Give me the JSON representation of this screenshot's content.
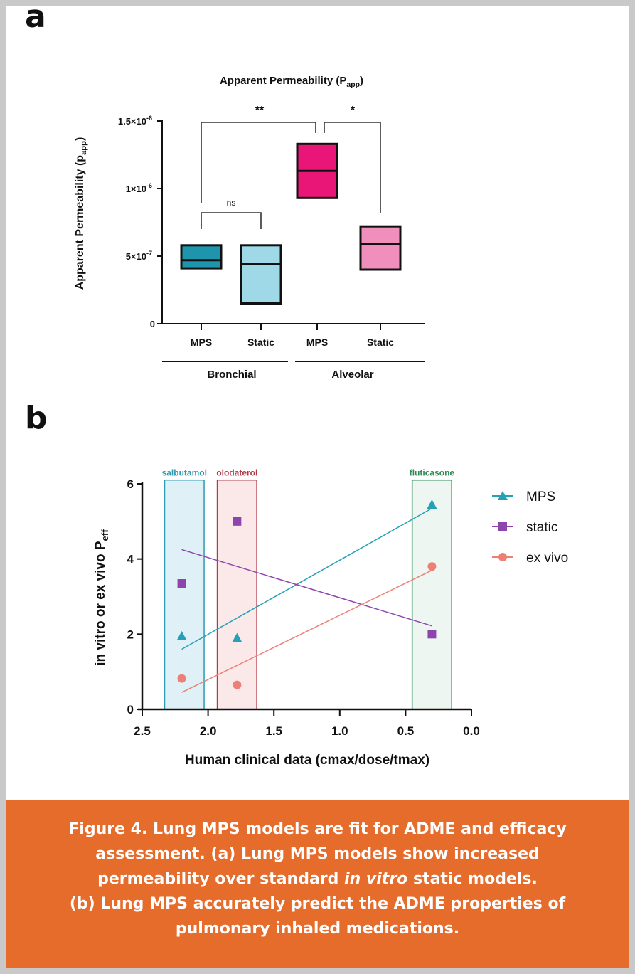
{
  "panels": {
    "a": "a",
    "b": "b"
  },
  "chart_data": [
    {
      "type": "box",
      "title": "Apparent Permeability (P",
      "title_sub": "app",
      "title_close": ")",
      "ylabel": "Apparent Permeability (p",
      "ylabel_sub": "app",
      "ylabel_close": ")",
      "ylim": [
        0,
        1.5e-06
      ],
      "yticks": [
        {
          "value": 0,
          "label": "0",
          "exp": ""
        },
        {
          "value": 5e-07,
          "label": "5×10",
          "exp": "-7"
        },
        {
          "value": 1e-06,
          "label": "1×10",
          "exp": "-6"
        },
        {
          "value": 1.5e-06,
          "label": "1.5×10",
          "exp": "-6"
        }
      ],
      "groups": [
        "Bronchial",
        "Alveolar"
      ],
      "categories": [
        "MPS",
        "Static",
        "MPS",
        "Static"
      ],
      "boxes": [
        {
          "group": "Bronchial",
          "label": "MPS",
          "min": 4.1e-07,
          "median": 4.7e-07,
          "max": 5.8e-07,
          "color": "#1e95ad"
        },
        {
          "group": "Bronchial",
          "label": "Static",
          "min": 1.5e-07,
          "median": 4.4e-07,
          "max": 5.8e-07,
          "color": "#9fd9e8"
        },
        {
          "group": "Alveolar",
          "label": "MPS",
          "min": 9.3e-07,
          "median": 1.13e-06,
          "max": 1.33e-06,
          "color": "#ea1677"
        },
        {
          "group": "Alveolar",
          "label": "Static",
          "min": 4e-07,
          "median": 5.9e-07,
          "max": 7.2e-07,
          "color": "#f08fbb"
        }
      ],
      "significance": [
        {
          "from": "Bronchial MPS",
          "to": "Alveolar MPS",
          "label": "**"
        },
        {
          "from": "Alveolar MPS",
          "to": "Alveolar Static",
          "label": "*"
        },
        {
          "from": "Bronchial MPS",
          "to": "Bronchial Static",
          "label": "ns"
        }
      ]
    },
    {
      "type": "scatter",
      "xlabel": "Human clinical data (cmax/dose/tmax)",
      "ylabel": "in vitro or ex vivo P",
      "ylabel_sub": "eff",
      "xlim": [
        2.5,
        0.0
      ],
      "ylim": [
        0,
        6
      ],
      "xticks": [
        "2.5",
        "2.0",
        "1.5",
        "1.0",
        "0.5",
        "0.0"
      ],
      "yticks": [
        "0",
        "2",
        "4",
        "6"
      ],
      "legend_position": "right",
      "regions": [
        {
          "label": "salbutamol",
          "x_range": [
            2.33,
            2.03
          ],
          "color": "#2a9bb0",
          "fill": "#dff1f6"
        },
        {
          "label": "olodaterol",
          "x_range": [
            1.93,
            1.63
          ],
          "color": "#b03a4a",
          "fill": "#fbe9ea"
        },
        {
          "label": "fluticasone",
          "x_range": [
            0.45,
            0.15
          ],
          "color": "#2e8a55",
          "fill": "#eef6f1"
        }
      ],
      "series": [
        {
          "name": "MPS",
          "marker": "triangle",
          "color": "#26a0b4",
          "x": [
            2.2,
            1.78,
            0.3
          ],
          "y": [
            1.95,
            1.9,
            5.45
          ],
          "fit": [
            [
              2.2,
              1.6
            ],
            [
              0.3,
              5.35
            ]
          ]
        },
        {
          "name": "static",
          "marker": "square",
          "color": "#8e44ad",
          "x": [
            2.2,
            1.78,
            0.3
          ],
          "y": [
            3.35,
            5.0,
            2.0
          ],
          "fit": [
            [
              2.2,
              4.25
            ],
            [
              0.3,
              2.22
            ]
          ]
        },
        {
          "name": "ex vivo",
          "marker": "circle",
          "color": "#ec8077",
          "x": [
            2.2,
            1.78,
            0.3
          ],
          "y": [
            0.82,
            0.65,
            3.8
          ],
          "fit": [
            [
              2.2,
              0.45
            ],
            [
              0.3,
              3.7
            ]
          ]
        }
      ]
    }
  ],
  "caption": {
    "lines": [
      "Figure 4. Lung MPS models are fit for ADME and efficacy",
      "assessment. (a) Lung MPS models show increased",
      "permeability over standard ",
      "(b) Lung MPS accurately predict the ADME properties of",
      "pulmonary inhaled medications."
    ],
    "italic": "in vitro",
    "line3_tail": " static models."
  }
}
